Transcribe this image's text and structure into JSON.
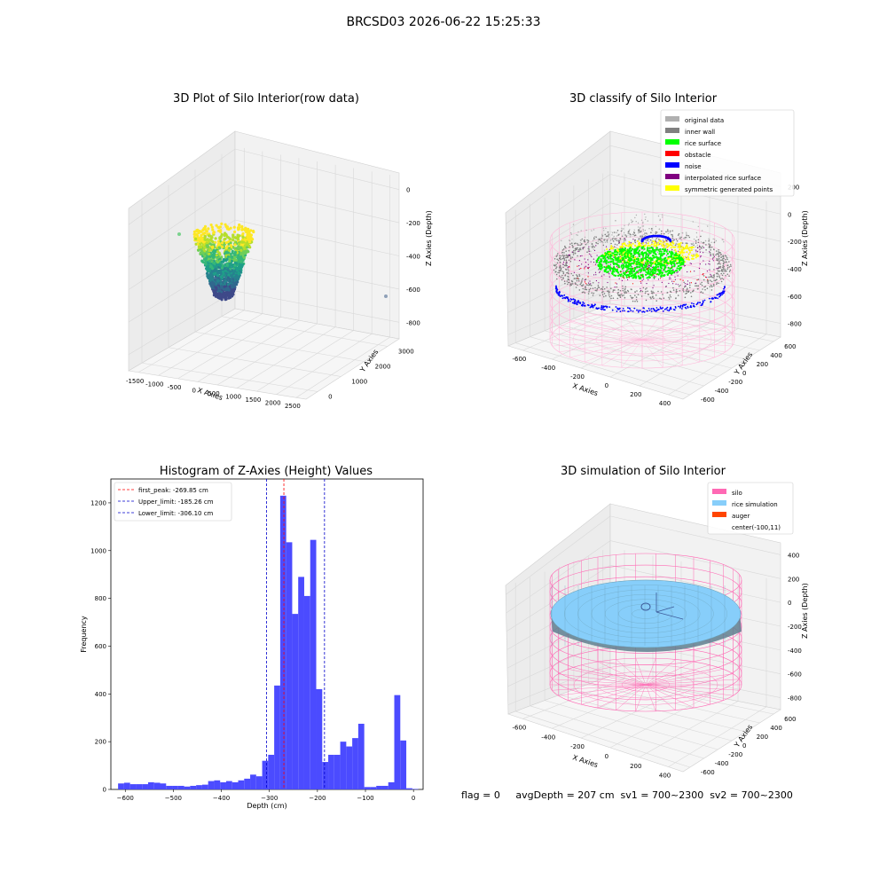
{
  "suptitle": "BRCSD03 2026-06-22 15:25:33",
  "footer": "flag = 0     avgDepth = 207 cm  sv1 = 700~2300  sv2 = 700~2300",
  "colors": {
    "hist_bar": "#4b4bff",
    "first_peak": "#ff0000",
    "limits": "#0000cc",
    "silo_mesh": "#ff69b4",
    "rice": "#87cefa",
    "auger": "#ff4500"
  },
  "chart_data": [
    {
      "type": "scatter",
      "subtype": "3d",
      "title": "3D Plot of Silo Interior(row data)",
      "xlabel": "X Axies",
      "ylabel": "Y Axies",
      "zlabel": "Z Axies (Depth)",
      "xticks": [
        "-1500",
        "-1000",
        "-500",
        "0",
        "500",
        "1000",
        "1500",
        "2000",
        "2500"
      ],
      "yticks": [
        "0",
        "1000",
        "2000",
        "3000"
      ],
      "zticks": [
        "0",
        "-200",
        "-400",
        "-600",
        "-800"
      ],
      "colormap": "viridis"
    },
    {
      "type": "scatter",
      "subtype": "3d",
      "title": "3D classify of Silo Interior",
      "xlabel": "X Axies",
      "ylabel": "Y Axies",
      "zlabel": "Z Axies (Depth)",
      "xticks": [
        "-600",
        "-400",
        "-200",
        "0",
        "200",
        "400"
      ],
      "yticks": [
        "-600",
        "-400",
        "-200",
        "0",
        "200",
        "400",
        "600"
      ],
      "zticks": [
        "200",
        "0",
        "-200",
        "-400",
        "-600",
        "-800"
      ],
      "zticks_partial_top": "00",
      "legend_position": "top-right",
      "legend": [
        {
          "label": "original data",
          "color": "#b0b0b0"
        },
        {
          "label": "inner wall",
          "color": "#808080"
        },
        {
          "label": "rice surface",
          "color": "#00ff00"
        },
        {
          "label": "obstacle",
          "color": "#ff0000"
        },
        {
          "label": "noise",
          "color": "#0000ff"
        },
        {
          "label": "interpolated rice surface",
          "color": "#800080"
        },
        {
          "label": "symmetric generated points",
          "color": "#ffff00"
        }
      ]
    },
    {
      "type": "bar",
      "subtype": "histogram",
      "title": "Histogram of Z-Axies (Height) Values",
      "xlabel": "Depth (cm)",
      "ylabel": "Frequency",
      "xlim": [
        -630,
        20
      ],
      "ylim": [
        0,
        1300
      ],
      "xticks": [
        -600,
        -500,
        -400,
        -300,
        -200,
        -100,
        0
      ],
      "yticks": [
        0,
        200,
        400,
        600,
        800,
        1000,
        1200
      ],
      "bin_width": 12.5,
      "bin_start": -615,
      "values": [
        25,
        28,
        22,
        22,
        22,
        30,
        28,
        25,
        15,
        15,
        15,
        12,
        15,
        18,
        20,
        35,
        38,
        30,
        35,
        30,
        38,
        45,
        62,
        55,
        120,
        145,
        435,
        1230,
        1035,
        735,
        890,
        810,
        1045,
        420,
        115,
        145,
        145,
        200,
        180,
        215,
        275,
        10,
        10,
        15,
        15,
        30,
        395,
        205,
        5,
        2
      ],
      "legend_position": "top-left",
      "vlines": [
        {
          "label": "first_peak: -269.85 cm",
          "x": -269.85,
          "color": "#ff0000"
        },
        {
          "label": "Upper_limit: -185.26 cm",
          "x": -185.26,
          "color": "#0000cc"
        },
        {
          "label": "Lower_limit: -306.10 cm",
          "x": -306.1,
          "color": "#0000cc"
        }
      ]
    },
    {
      "type": "area",
      "subtype": "3d-surface",
      "title": "3D simulation of Silo Interior",
      "xlabel": "X Axies",
      "ylabel": "Y Axies",
      "zlabel": "Z Axies (Depth)",
      "xticks": [
        "-600",
        "-400",
        "-200",
        "0",
        "200",
        "400"
      ],
      "yticks": [
        "-600",
        "-400",
        "-200",
        "0",
        "200",
        "400",
        "600"
      ],
      "zticks": [
        "400",
        "200",
        "0",
        "-200",
        "-400",
        "-600",
        "-800"
      ],
      "legend_position": "top-right",
      "legend": [
        {
          "label": "silo",
          "color": "#ff69b4"
        },
        {
          "label": "rice simulation",
          "color": "#87cefa"
        },
        {
          "label": "auger",
          "color": "#ff4500"
        },
        {
          "label": "center(-100,11)",
          "color": ""
        }
      ]
    }
  ]
}
